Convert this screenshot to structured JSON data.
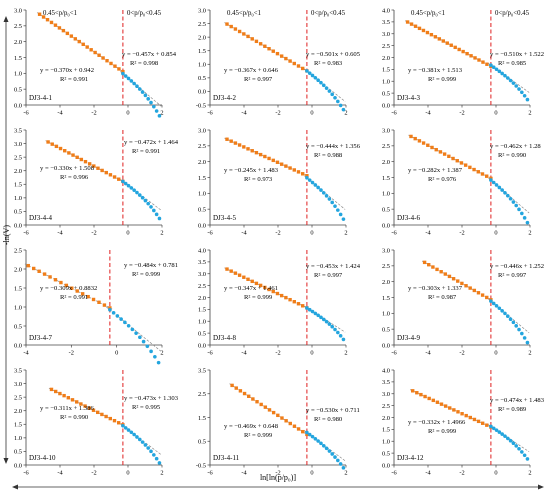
{
  "figure": {
    "ylabel": "-ln(V)",
    "xlabel": "ln[ln(p/p₀)]",
    "colors": {
      "high": "#f07d18",
      "low": "#23a5de",
      "fit": "#8a8a8a",
      "divider": "#e02020"
    }
  },
  "chart_data": [
    {
      "type": "scatter",
      "sample": "DJ3-4-1",
      "range_labels": [
        "0.45<p/p₀<1",
        "0<p/p₀<0.45"
      ],
      "xlim": [
        -6,
        2
      ],
      "xticks": [
        -6,
        -4,
        -2,
        0,
        2
      ],
      "ylim": [
        0,
        3
      ],
      "yticks": [
        "0.0",
        "0.5",
        "1.0",
        "1.5",
        "2.0",
        "2.5",
        "3.0"
      ],
      "divider_x": -0.3,
      "high": {
        "x_range": [
          -5.2,
          -0.3
        ],
        "slope": -0.37,
        "intercept": 0.942,
        "n": 22,
        "equation": "y = −0.370x + 0.942",
        "r2": "R² = 0.991"
      },
      "low": {
        "x_range": [
          -0.3,
          1.85
        ],
        "slope": -0.457,
        "intercept": 0.854,
        "n": 14,
        "equation": "y = −0.457x + 0.854",
        "r2": "R² = 0.998"
      }
    },
    {
      "type": "scatter",
      "sample": "DJ3-4-2",
      "range_labels": [
        "0.45<p/p₀<1",
        "0<p/p₀<0.45"
      ],
      "xlim": [
        -6,
        2
      ],
      "xticks": [
        -6,
        -4,
        -2,
        0,
        2
      ],
      "ylim": [
        -0.5,
        3
      ],
      "yticks": [
        "-0.5",
        "0.0",
        "0.5",
        "1.0",
        "1.5",
        "2.0",
        "2.5",
        "3.0"
      ],
      "divider_x": -0.3,
      "high": {
        "x_range": [
          -5.0,
          -0.3
        ],
        "slope": -0.367,
        "intercept": 0.646,
        "n": 20,
        "equation": "y = −0.367x + 0.646",
        "r2": "R² = 0.997"
      },
      "low": {
        "x_range": [
          -0.3,
          1.85
        ],
        "slope": -0.501,
        "intercept": 0.605,
        "n": 14,
        "equation": "y = −0.501x + 0.605",
        "r2": "R² = 0.983"
      }
    },
    {
      "type": "scatter",
      "sample": "DJ3-4-3",
      "range_labels": [
        "0.45<p/p₀<1",
        "0<p/p₀<0.45"
      ],
      "xlim": [
        -6,
        2
      ],
      "xticks": [
        -6,
        -4,
        -2,
        0,
        2
      ],
      "ylim": [
        0,
        4
      ],
      "yticks": [
        "0.0",
        "0.5",
        "1.0",
        "1.5",
        "2.0",
        "2.5",
        "3.0",
        "3.5",
        "4.0"
      ],
      "divider_x": -0.3,
      "high": {
        "x_range": [
          -5.2,
          -0.3
        ],
        "slope": -0.381,
        "intercept": 1.513,
        "n": 22,
        "equation": "y = −0.381x + 1.513",
        "r2": "R² = 0.999"
      },
      "low": {
        "x_range": [
          -0.3,
          1.85
        ],
        "slope": -0.51,
        "intercept": 1.522,
        "n": 14,
        "equation": "y = −0.510x + 1.522",
        "r2": "R² = 0.985"
      }
    },
    {
      "type": "scatter",
      "sample": "DJ3-4-4",
      "xlim": [
        -6,
        2
      ],
      "xticks": [
        -6,
        -4,
        -2,
        0,
        2
      ],
      "ylim": [
        0,
        3.5
      ],
      "yticks": [
        "0.0",
        "0.5",
        "1.0",
        "1.5",
        "2.0",
        "2.5",
        "3.0",
        "3.5"
      ],
      "divider_x": -0.3,
      "high": {
        "x_range": [
          -4.7,
          -0.3
        ],
        "slope": -0.33,
        "intercept": 1.508,
        "n": 19,
        "equation": "y = −0.330x + 1.508",
        "r2": "R² = 0.996"
      },
      "low": {
        "x_range": [
          -0.3,
          1.85
        ],
        "slope": -0.472,
        "intercept": 1.464,
        "n": 14,
        "equation": "y = −0.472x + 1.464",
        "r2": "R² = 0.991"
      }
    },
    {
      "type": "scatter",
      "sample": "DJ3-4-5",
      "xlim": [
        -6,
        2
      ],
      "xticks": [
        -6,
        -4,
        -2,
        0,
        2
      ],
      "ylim": [
        0,
        3
      ],
      "yticks": [
        "0.0",
        "0.5",
        "1.0",
        "1.5",
        "2.0",
        "2.5",
        "3.0"
      ],
      "divider_x": -0.3,
      "high": {
        "x_range": [
          -5.0,
          -0.3
        ],
        "slope": -0.245,
        "intercept": 1.483,
        "n": 20,
        "equation": "y = −0.245x + 1.483",
        "r2": "R² = 0.973"
      },
      "low": {
        "x_range": [
          -0.3,
          1.85
        ],
        "slope": -0.444,
        "intercept": 1.356,
        "n": 14,
        "equation": "y = −0.444x + 1.356",
        "r2": "R² = 0.988"
      }
    },
    {
      "type": "scatter",
      "sample": "DJ3-4-6",
      "xlim": [
        -6,
        2
      ],
      "xticks": [
        -6,
        -4,
        -2,
        0,
        2
      ],
      "ylim": [
        0,
        3
      ],
      "yticks": [
        "0.0",
        "0.5",
        "1.0",
        "1.5",
        "2.0",
        "2.5",
        "3.0"
      ],
      "divider_x": -0.3,
      "high": {
        "x_range": [
          -5.0,
          -0.3
        ],
        "slope": -0.282,
        "intercept": 1.387,
        "n": 20,
        "equation": "y = −0.282x + 1.387",
        "r2": "R² = 0.976"
      },
      "low": {
        "x_range": [
          -0.3,
          1.85
        ],
        "slope": -0.462,
        "intercept": 1.28,
        "n": 14,
        "equation": "y = −0.462x + 1.28",
        "r2": "R² = 0.990"
      }
    },
    {
      "type": "scatter",
      "sample": "DJ3-4-7",
      "xlim": [
        -4,
        2
      ],
      "xticks": [
        -4,
        -2,
        0,
        2
      ],
      "ylim": [
        0,
        2.5
      ],
      "yticks": [
        "0.0",
        "0.5",
        "1.0",
        "1.5",
        "2.0",
        "2.5"
      ],
      "divider_x": -0.3,
      "high": {
        "x_range": [
          -3.9,
          -0.3
        ],
        "slope": -0.309,
        "intercept": 0.883,
        "n": 16,
        "equation": "y = −0.309x + 0.8832",
        "r2": "R² = 0.991"
      },
      "low": {
        "x_range": [
          -0.3,
          1.85
        ],
        "slope": -0.484,
        "intercept": 0.781,
        "n": 14,
        "equation": "y = −0.484x + 0.781",
        "r2": "R² = 0.999"
      }
    },
    {
      "type": "scatter",
      "sample": "DJ3-4-8",
      "xlim": [
        -6,
        2
      ],
      "xticks": [
        -6,
        -4,
        -2,
        0,
        2
      ],
      "ylim": [
        0,
        4
      ],
      "yticks": [
        "0.0",
        "0.5",
        "1.0",
        "1.5",
        "2.0",
        "2.5",
        "3.0",
        "3.5",
        "4.0"
      ],
      "divider_x": -0.3,
      "high": {
        "x_range": [
          -5.0,
          -0.3
        ],
        "slope": -0.347,
        "intercept": 1.461,
        "n": 20,
        "equation": "y = −0.347x + 1.461",
        "r2": "R² = 0.999"
      },
      "low": {
        "x_range": [
          -0.3,
          1.85
        ],
        "slope": -0.453,
        "intercept": 1.424,
        "n": 14,
        "equation": "y = −0.453x + 1.424",
        "r2": "R² = 0.997"
      }
    },
    {
      "type": "scatter",
      "sample": "DJ3-4-9",
      "xlim": [
        -6,
        2
      ],
      "xticks": [
        -6,
        -4,
        -2,
        0,
        2
      ],
      "ylim": [
        0,
        3
      ],
      "yticks": [
        "0.0",
        "0.5",
        "1.0",
        "1.5",
        "2.0",
        "2.5",
        "3.0"
      ],
      "divider_x": -0.3,
      "high": {
        "x_range": [
          -4.2,
          -0.3
        ],
        "slope": -0.303,
        "intercept": 1.337,
        "n": 17,
        "equation": "y = −0.303x + 1.337",
        "r2": "R² = 0.987"
      },
      "low": {
        "x_range": [
          -0.3,
          1.85
        ],
        "slope": -0.446,
        "intercept": 1.252,
        "n": 14,
        "equation": "y = −0.446x + 1.252",
        "r2": "R² = 0.997"
      }
    },
    {
      "type": "scatter",
      "sample": "DJ3-4-10",
      "xlim": [
        -6,
        2
      ],
      "xticks": [
        -6,
        -4,
        -2,
        0,
        2
      ],
      "ylim": [
        0,
        3.5
      ],
      "yticks": [
        "0.0",
        "0.5",
        "1.0",
        "1.5",
        "2.0",
        "2.5",
        "3.0",
        "3.5"
      ],
      "divider_x": -0.3,
      "high": {
        "x_range": [
          -4.5,
          -0.3
        ],
        "slope": -0.311,
        "intercept": 1.386,
        "n": 18,
        "equation": "y = −0.311x + 1.386",
        "r2": "R² = 0.990"
      },
      "low": {
        "x_range": [
          -0.3,
          1.85
        ],
        "slope": -0.473,
        "intercept": 1.303,
        "n": 14,
        "equation": "y = −0.473x + 1.303",
        "r2": "R² = 0.995"
      }
    },
    {
      "type": "scatter",
      "sample": "DJ3-4-11",
      "xlim": [
        -6,
        2
      ],
      "xticks": [
        -6,
        -4,
        -2,
        0,
        2
      ],
      "ylim": [
        -0.5,
        3.5
      ],
      "yticks": [
        "-0.5",
        "0.5",
        "1.5",
        "2.5",
        "3.5"
      ],
      "divider_x": -0.3,
      "high": {
        "x_range": [
          -4.7,
          -0.3
        ],
        "slope": -0.469,
        "intercept": 0.648,
        "n": 19,
        "equation": "y = −0.469x + 0.648",
        "r2": "R² = 0.999"
      },
      "low": {
        "x_range": [
          -0.3,
          1.85
        ],
        "slope": -0.53,
        "intercept": 0.711,
        "n": 14,
        "equation": "y = −0.530x + 0.711",
        "r2": "R² = 0.980"
      }
    },
    {
      "type": "scatter",
      "sample": "DJ3-4-12",
      "xlim": [
        -6,
        2
      ],
      "xticks": [
        -6,
        -4,
        -2,
        0,
        2
      ],
      "ylim": [
        0,
        4
      ],
      "yticks": [
        "0.0",
        "0.5",
        "1.0",
        "1.5",
        "2.0",
        "2.5",
        "3.0",
        "3.5",
        "4.0"
      ],
      "divider_x": -0.3,
      "high": {
        "x_range": [
          -4.9,
          -0.3
        ],
        "slope": -0.332,
        "intercept": 1.497,
        "n": 20,
        "equation": "y = −0.332x + 1.4966",
        "r2": "R² = 0.999"
      },
      "low": {
        "x_range": [
          -0.3,
          1.85
        ],
        "slope": -0.474,
        "intercept": 1.483,
        "n": 14,
        "equation": "y = −0.474x + 1.483",
        "r2": "R² = 0.989"
      }
    }
  ]
}
